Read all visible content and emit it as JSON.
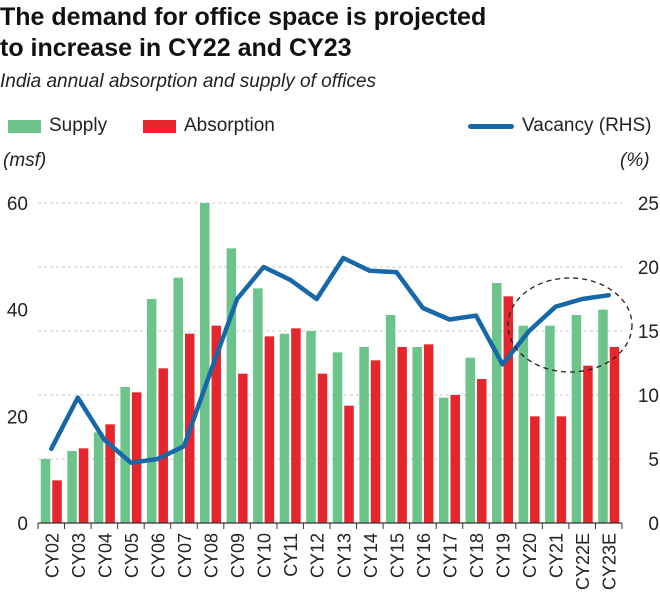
{
  "title_lines": [
    "The demand for office space is projected",
    "to increase in CY22 and CY23"
  ],
  "subtitle": "India annual absorption and supply of offices",
  "legend": {
    "supply": "Supply",
    "absorption": "Absorption",
    "vacancy": "Vacancy (RHS)"
  },
  "units": {
    "left": "(msf)",
    "right": "(%)"
  },
  "colors": {
    "supply": "#6cc48a",
    "absorption": "#e5262c",
    "vacancy": "#1668a8"
  },
  "chart_data": {
    "type": "bar",
    "categories": [
      "CY02",
      "CY03",
      "CY04",
      "CY05",
      "CY06",
      "CY07",
      "CY08",
      "CY09",
      "CY10",
      "CY11",
      "CY12",
      "CY13",
      "CY14",
      "CY15",
      "CY16",
      "CY17",
      "CY18",
      "CY19",
      "CY20",
      "CY21",
      "CY22E",
      "CY23E"
    ],
    "series": [
      {
        "name": "Supply",
        "type": "bar",
        "axis": "left",
        "values": [
          12,
          13.5,
          17,
          25.5,
          42,
          46,
          60,
          51.5,
          44,
          35.5,
          36,
          32,
          33,
          39,
          33,
          23.5,
          31,
          45,
          37,
          37,
          39,
          40
        ]
      },
      {
        "name": "Absorption",
        "type": "bar",
        "axis": "left",
        "values": [
          8,
          14,
          18.5,
          24.5,
          29,
          35.5,
          37,
          28,
          35,
          36.5,
          28,
          22,
          30.5,
          33,
          33.5,
          24,
          27,
          42.5,
          20,
          20,
          29.5,
          33
        ]
      },
      {
        "name": "Vacancy (RHS)",
        "type": "line",
        "axis": "right",
        "values": [
          5.8,
          9.8,
          6.5,
          4.7,
          5.0,
          6.0,
          11.8,
          17.5,
          20.0,
          19.0,
          17.5,
          20.7,
          19.7,
          19.6,
          16.8,
          15.9,
          16.2,
          12.4,
          15.0,
          16.9,
          17.5,
          17.8
        ]
      }
    ],
    "y_left": {
      "ylim": [
        0,
        60
      ],
      "ticks": [
        0,
        20,
        40,
        60
      ]
    },
    "y_right": {
      "ylim": [
        0,
        25
      ],
      "ticks": [
        0,
        5,
        10,
        15,
        20,
        25
      ]
    },
    "grid": "dashed horizontal",
    "annotation": "dashed circle around CY20-CY23E"
  }
}
